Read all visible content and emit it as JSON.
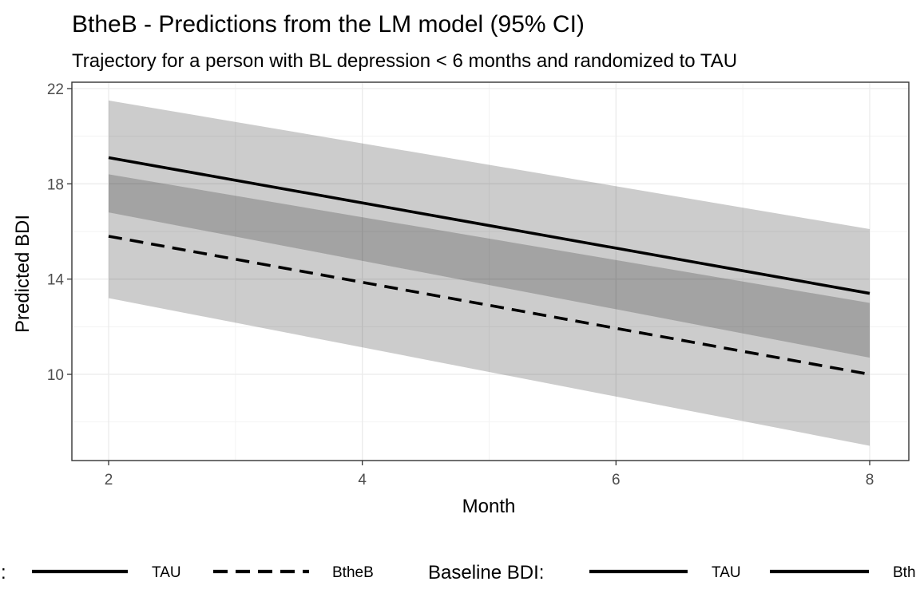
{
  "chart_data": {
    "type": "line",
    "title": "BtheB - Predictions from the LM model (95% CI)",
    "subtitle": "Trajectory for a person with BL depression < 6 months and randomized to TAU",
    "xlabel": "Month",
    "ylabel": "Predicted BDI",
    "xlim": [
      1.72,
      8.78
    ],
    "ylim": [
      6.43,
      22.1
    ],
    "x_ticks": [
      2,
      4,
      6,
      8
    ],
    "x_tick_labels": [
      "2",
      "4",
      "6",
      "8"
    ],
    "y_ticks": [
      10,
      14,
      18,
      22
    ],
    "y_tick_labels": [
      "10",
      "14",
      "18",
      "22"
    ],
    "grid": true,
    "legend_position": "bottom",
    "x": [
      2,
      8
    ],
    "series": [
      {
        "linetype": "solid",
        "values": [
          19.1,
          13.4
        ],
        "lower": [
          16.8,
          10.7
        ],
        "upper": [
          21.5,
          16.1
        ]
      },
      {
        "linetype": "dashed",
        "values": [
          15.8,
          10.0
        ],
        "lower": [
          13.2,
          7.0
        ],
        "upper": [
          18.4,
          13.0
        ]
      }
    ],
    "legends": [
      {
        "title": ":",
        "items": [
          {
            "label": "TAU",
            "linetype": "solid"
          },
          {
            "label": "BtheB",
            "linetype": "dashed"
          }
        ]
      },
      {
        "title": "Baseline BDI:",
        "items": [
          {
            "label": "TAU",
            "linetype": "solid"
          },
          {
            "label": "Bth",
            "linetype": "solid"
          }
        ]
      }
    ],
    "colors": {
      "line": "#000000",
      "ribbon": "#000000",
      "panel_border": "#333333",
      "grid_major": "#ebebeb",
      "grid_minor": "#f3f3f3",
      "tick_label": "#4d4d4d"
    }
  }
}
